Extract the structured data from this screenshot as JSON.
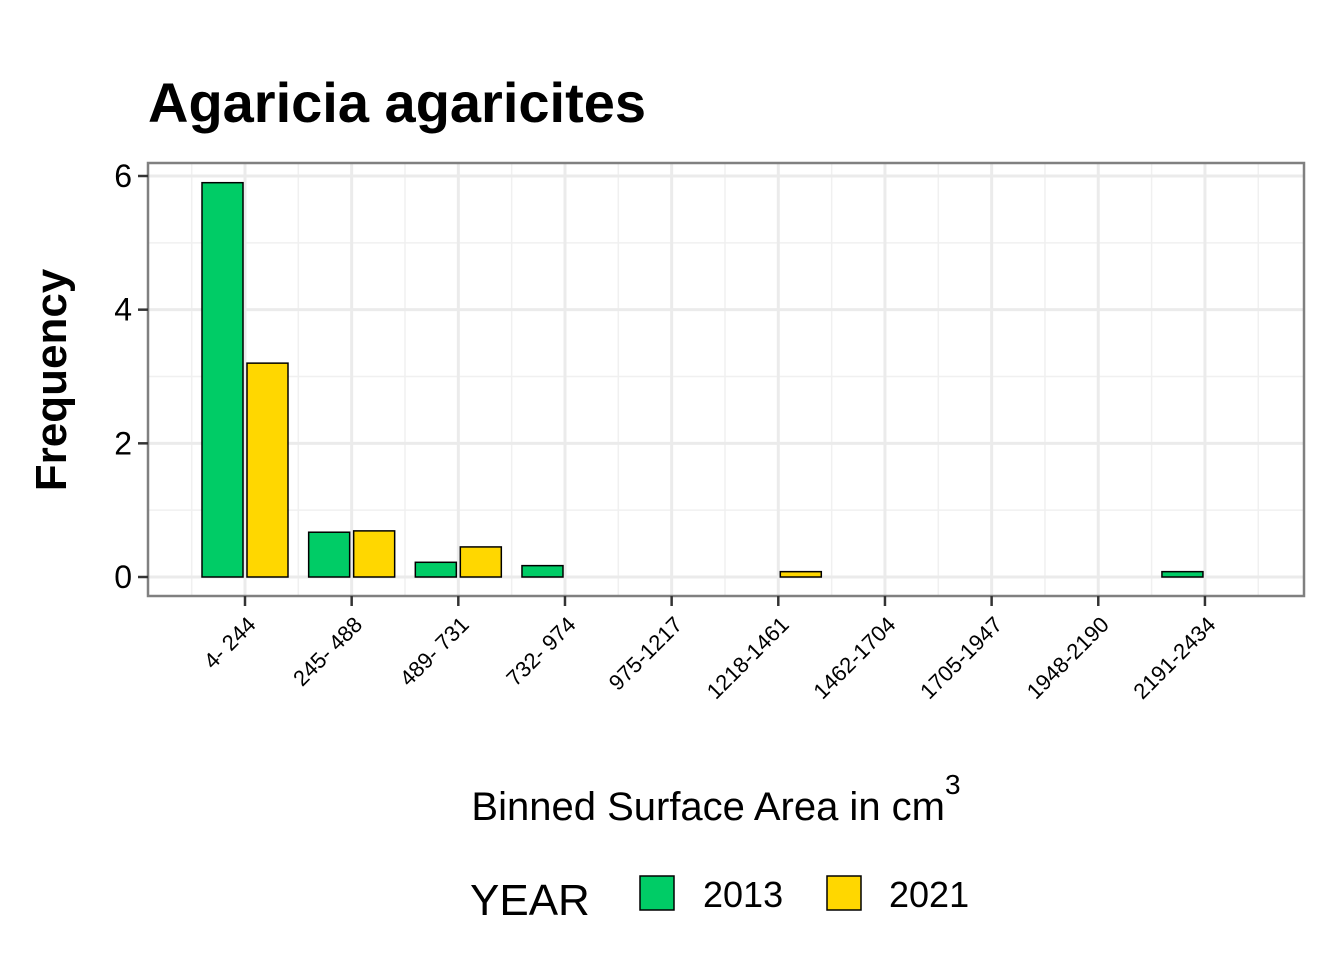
{
  "chart_data": {
    "type": "bar",
    "title": "Agaricia agaricites",
    "xlabel": "Binned Surface Area in cm",
    "xlabel_superscript": "3",
    "ylabel": "Frequency",
    "ylim": [
      0,
      6.2
    ],
    "yticks": [
      "0",
      "2",
      "4",
      "6"
    ],
    "ytick_values": [
      0,
      2,
      4,
      6
    ],
    "categories": [
      "4- 244",
      "245- 488",
      "489- 731",
      "732- 974",
      "975-1217",
      "1218-1461",
      "1462-1704",
      "1705-1947",
      "1948-2190",
      "2191-2434"
    ],
    "series": [
      {
        "name": "2013",
        "color": "#00CC66",
        "values": [
          5.9,
          0.67,
          0.22,
          0.17,
          0,
          0,
          0,
          0,
          0,
          0.08
        ]
      },
      {
        "name": "2021",
        "color": "#FFD700",
        "values": [
          3.2,
          0.69,
          0.45,
          0,
          0,
          0.08,
          0,
          0,
          0,
          0
        ]
      }
    ],
    "grid": true,
    "legend": {
      "title": "YEAR",
      "position": "bottom"
    }
  }
}
